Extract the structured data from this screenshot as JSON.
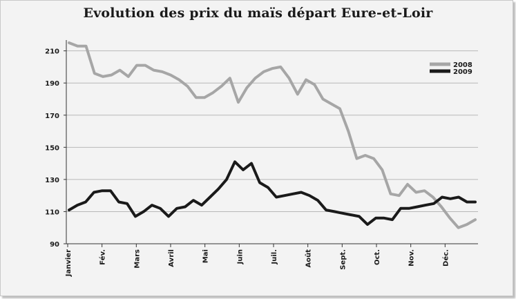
{
  "chart_data": {
    "type": "line",
    "title": "Evolution des prix du maïs départ Eure-et-Loir",
    "xlabel": "",
    "ylabel": "",
    "ylim": [
      90,
      215
    ],
    "yticks": [
      90,
      110,
      130,
      150,
      170,
      190,
      210
    ],
    "grid": "horizontal",
    "legend": "top-right",
    "months": [
      "Janvier",
      "Fév.",
      "Mars",
      "Avril",
      "Mai",
      "Juin",
      "Juil.",
      "Août",
      "Sept.",
      "Oct.",
      "Nov.",
      "Déc."
    ],
    "x_note": "weekly observations, approx. 52 weeks starting Janvier",
    "series": [
      {
        "name": "2008",
        "color": "#a6a6a6",
        "values": [
          215,
          213,
          213,
          196,
          194,
          195,
          198,
          194,
          201,
          201,
          198,
          197,
          195,
          192,
          188,
          181,
          181,
          184,
          188,
          193,
          178,
          187,
          193,
          197,
          199,
          200,
          193,
          183,
          192,
          189,
          180,
          177,
          174,
          160,
          143,
          145,
          143,
          136,
          121,
          120,
          127,
          122,
          123,
          119,
          113,
          106,
          100,
          102,
          105
        ]
      },
      {
        "name": "2009",
        "color": "#1a1a1a",
        "values": [
          111,
          114,
          116,
          122,
          123,
          123,
          116,
          115,
          107,
          110,
          114,
          112,
          107,
          112,
          113,
          117,
          114,
          119,
          124,
          130,
          141,
          136,
          140,
          128,
          125,
          119,
          120,
          121,
          122,
          120,
          117,
          111,
          110,
          109,
          108,
          107,
          102,
          106,
          106,
          105,
          112,
          112,
          113,
          114,
          115,
          119,
          118,
          119,
          116,
          116
        ]
      }
    ]
  }
}
